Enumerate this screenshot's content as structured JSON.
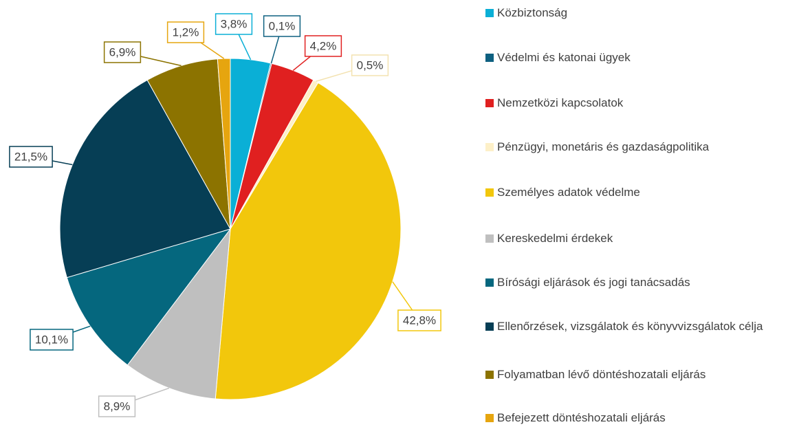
{
  "chart_data": {
    "type": "pie",
    "categories": [
      "Közbiztonság",
      "Védelmi és katonai ügyek",
      "Nemzetközi kapcsolatok",
      "Pénzügyi, monetáris és gazdaságpolitika",
      "Személyes adatok védelme",
      "Kereskedelmi érdekek",
      "Bírósági eljárások és jogi tanácsadás",
      "Ellenőrzések, vizsgálatok és könyvvizsgálatok célja",
      "Folyamatban lévő döntéshozatali eljárás",
      "Befejezett döntéshozatali eljárás"
    ],
    "values": [
      3.8,
      0.1,
      4.2,
      0.5,
      42.8,
      8.9,
      10.1,
      21.5,
      6.9,
      1.2
    ],
    "value_labels": [
      "3,8%",
      "0,1%",
      "4,2%",
      "0,5%",
      "42,8%",
      "8,9%",
      "10,1%",
      "21,5%",
      "6,9%",
      "1,2%"
    ],
    "colors": [
      "#0aafd6",
      "#0e6080",
      "#e02020",
      "#fdf0c8",
      "#f2c70c",
      "#bfbfbf",
      "#05677e",
      "#063e55",
      "#8c7300",
      "#e6a50f"
    ],
    "legend": "right"
  }
}
